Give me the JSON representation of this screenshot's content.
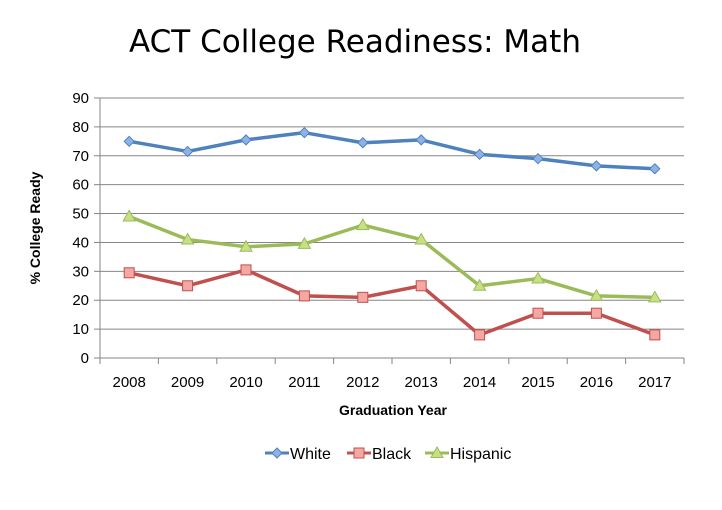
{
  "chart_data": {
    "type": "line",
    "title": "ACT College Readiness: Math",
    "xlabel": "Graduation Year",
    "ylabel": "% College Ready",
    "categories": [
      "2008",
      "2009",
      "2010",
      "2011",
      "2012",
      "2013",
      "2014",
      "2015",
      "2016",
      "2017"
    ],
    "yticks": [
      "0",
      "10",
      "20",
      "30",
      "40",
      "50",
      "60",
      "70",
      "80",
      "90"
    ],
    "ylim": [
      0,
      90
    ],
    "grid": true,
    "legend_position": "bottom",
    "series": [
      {
        "name": "White",
        "values": [
          75,
          71.5,
          75.5,
          78,
          74.5,
          75.5,
          70.5,
          69,
          66.5,
          65.5
        ],
        "color": "#4F81BD",
        "marker_fill": "#8FB2E6",
        "marker": "diamond"
      },
      {
        "name": "Black",
        "values": [
          29.5,
          25,
          30.5,
          21.5,
          21,
          25,
          8,
          15.5,
          15.5,
          8
        ],
        "color": "#C0504D",
        "marker_fill": "#F5A7A4",
        "marker": "square"
      },
      {
        "name": "Hispanic",
        "values": [
          49,
          41,
          38.5,
          39.5,
          46,
          41,
          25,
          27.5,
          21.5,
          21
        ],
        "color": "#9BBB59",
        "marker_fill": "#C6E083",
        "marker": "triangle"
      }
    ]
  }
}
